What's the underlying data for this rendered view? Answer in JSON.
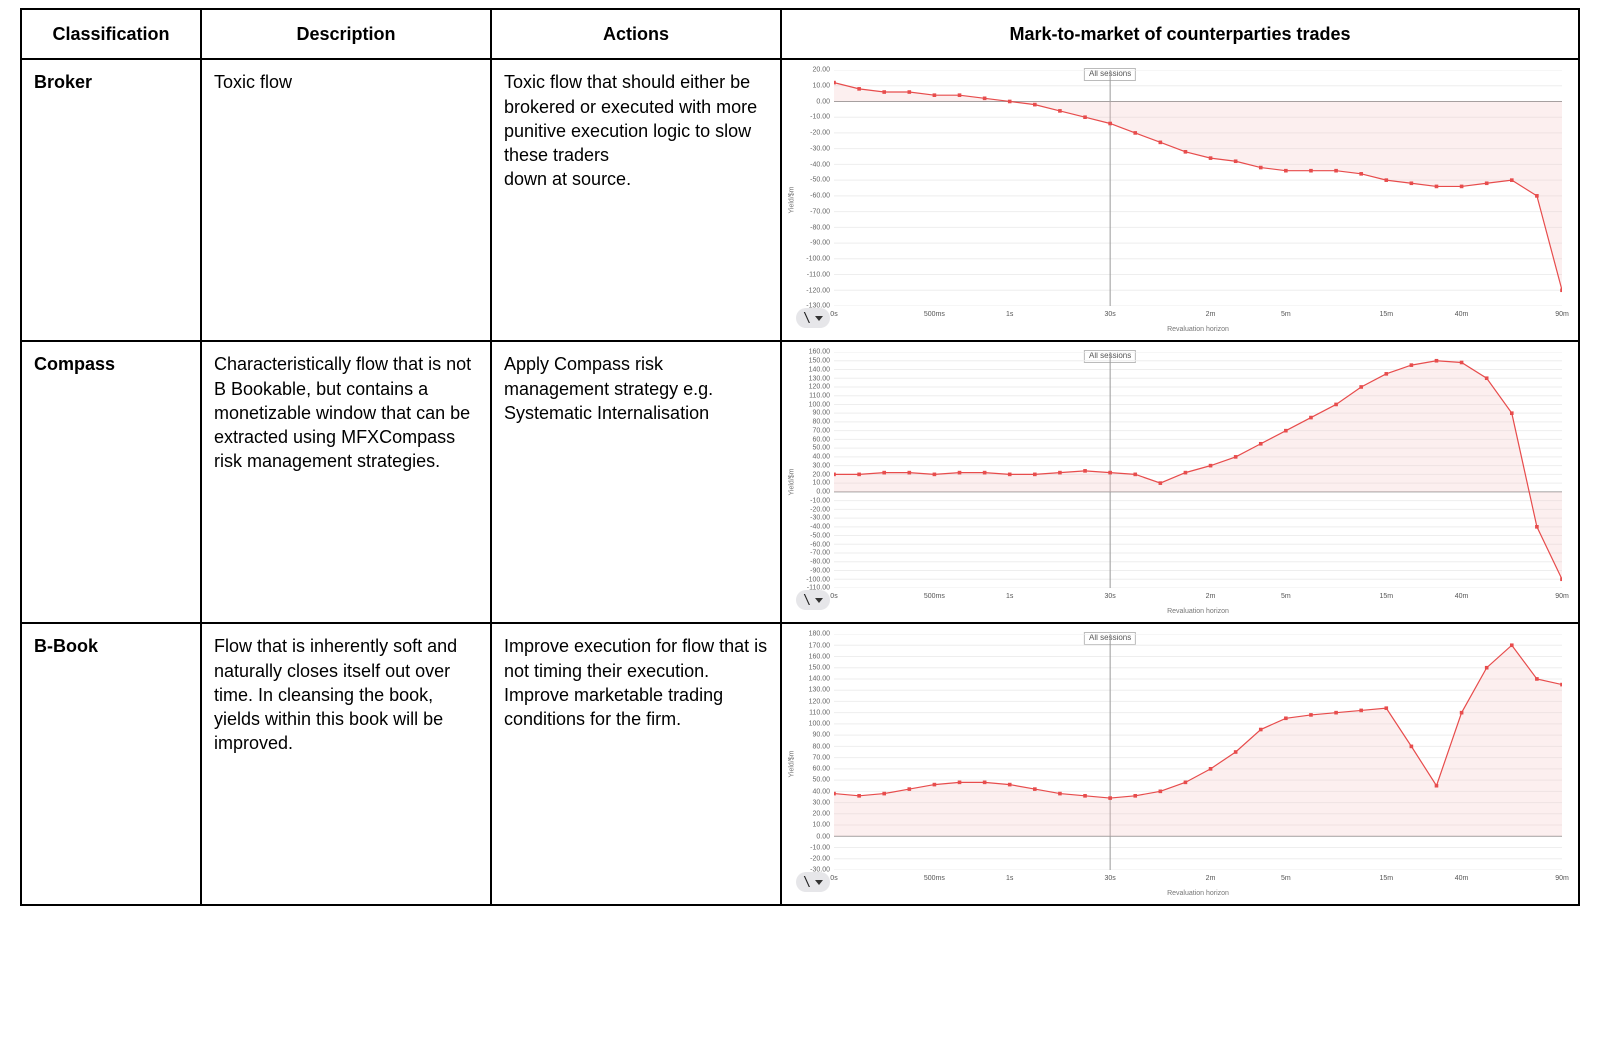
{
  "table": {
    "headers": {
      "classification": "Classification",
      "description": "Description",
      "actions": "Actions",
      "chart": "Mark-to-market of counterparties trades"
    },
    "rows": [
      {
        "classification": "Broker",
        "description": "Toxic flow",
        "actions": "Toxic flow that should either be brokered or executed with more punitive execution logic to slow these traders\ndown at source.",
        "chart_key": "broker"
      },
      {
        "classification": "Compass",
        "description": "Characteristically flow that is not B Bookable, but contains a monetizable window that can be extracted using MFXCompass risk management strategies.",
        "actions": "Apply Compass risk management strategy e.g. Systematic Internalisation",
        "chart_key": "compass"
      },
      {
        "classification": "B-Book",
        "description": "Flow that is inherently soft and naturally closes itself out over time. In cleansing the book, yields within this book will be improved.",
        "actions": "Improve execution for flow that is not timing their execution. Improve marketable trading conditions for the firm.",
        "chart_key": "bbook"
      }
    ]
  },
  "charts": {
    "common": {
      "background_color": "#ffffff",
      "grid_color": "#eeeeee",
      "zero_line_color": "#9a9a9a",
      "vline_color": "#9a9a9a",
      "tick_font_size": 7,
      "tick_color": "#666666",
      "line_color": "#e74c4c",
      "fill_color": "#f5c6c6",
      "fill_opacity": 0.28,
      "marker": "square",
      "marker_size": 3,
      "line_width": 1.2,
      "vline_at_index": 3,
      "x_categories": [
        "0s",
        "500ms",
        "1s",
        "30s",
        "2m",
        "5m",
        "15m",
        "40m",
        "90m"
      ],
      "x_axis_label": "Revaluation horizon",
      "legend_label": "All sessions",
      "menu_glyph": "\\",
      "n_points": 30
    },
    "broker": {
      "type": "area",
      "y_axis_label": "Yield/$m",
      "ylim": [
        -130,
        20
      ],
      "ytick_step": 10,
      "values": [
        12,
        8,
        6,
        6,
        4,
        4,
        2,
        0,
        -2,
        -6,
        -10,
        -14,
        -20,
        -26,
        -32,
        -36,
        -38,
        -42,
        -44,
        -44,
        -44,
        -46,
        -50,
        -52,
        -54,
        -54,
        -52,
        -50,
        -60,
        -120
      ]
    },
    "compass": {
      "type": "area",
      "y_axis_label": "Yield/$m",
      "ylim": [
        -110,
        160
      ],
      "ytick_step": 10,
      "values": [
        20,
        20,
        22,
        22,
        20,
        22,
        22,
        20,
        20,
        22,
        24,
        22,
        20,
        10,
        22,
        30,
        40,
        55,
        70,
        85,
        100,
        120,
        135,
        145,
        150,
        148,
        130,
        90,
        -40,
        -100
      ]
    },
    "bbook": {
      "type": "area",
      "y_axis_label": "Yield/$m",
      "ylim": [
        -30,
        180
      ],
      "ytick_step": 10,
      "values": [
        38,
        36,
        38,
        42,
        46,
        48,
        48,
        46,
        42,
        38,
        36,
        34,
        36,
        40,
        48,
        60,
        75,
        95,
        105,
        108,
        110,
        112,
        114,
        80,
        45,
        110,
        150,
        170,
        140,
        135
      ]
    }
  }
}
